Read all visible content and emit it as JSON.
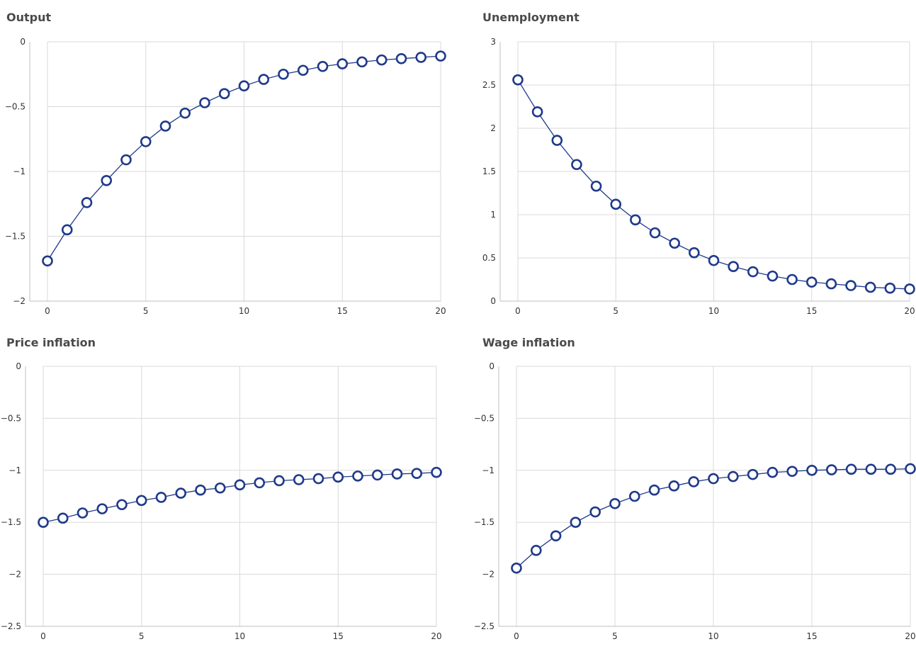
{
  "chart_data": [
    {
      "type": "line",
      "title": "Output",
      "xlabel": "",
      "ylabel": "",
      "xlim": [
        0,
        20
      ],
      "ylim": [
        -2,
        0
      ],
      "xticks": [
        0,
        5,
        10,
        15,
        20
      ],
      "yticks": [
        0,
        -0.5,
        -1,
        -1.5,
        -2
      ],
      "ytick_labels": [
        "0",
        "−0.5",
        "−1",
        "−1.5",
        "−2"
      ],
      "grid": true,
      "color": "#1f3a8a",
      "x": [
        0,
        1,
        2,
        3,
        4,
        5,
        6,
        7,
        8,
        9,
        10,
        11,
        12,
        13,
        14,
        15,
        16,
        17,
        18,
        19,
        20
      ],
      "series": [
        {
          "values": [
            -1.69,
            -1.45,
            -1.24,
            -1.07,
            -0.91,
            -0.77,
            -0.65,
            -0.55,
            -0.47,
            -0.4,
            -0.34,
            -0.29,
            -0.25,
            -0.22,
            -0.19,
            -0.17,
            -0.155,
            -0.14,
            -0.13,
            -0.12,
            -0.11
          ]
        }
      ]
    },
    {
      "type": "line",
      "title": "Unemployment",
      "xlabel": "",
      "ylabel": "",
      "xlim": [
        0,
        20
      ],
      "ylim": [
        0,
        3
      ],
      "xticks": [
        0,
        5,
        10,
        15,
        20
      ],
      "yticks": [
        3,
        2.5,
        2,
        1.5,
        1,
        0.5,
        0
      ],
      "ytick_labels": [
        "3",
        "2.5",
        "2",
        "1.5",
        "1",
        "0.5",
        "0"
      ],
      "grid": true,
      "color": "#1f3a8a",
      "x": [
        0,
        1,
        2,
        3,
        4,
        5,
        6,
        7,
        8,
        9,
        10,
        11,
        12,
        13,
        14,
        15,
        16,
        17,
        18,
        19,
        20
      ],
      "series": [
        {
          "values": [
            2.56,
            2.19,
            1.86,
            1.58,
            1.33,
            1.12,
            0.94,
            0.79,
            0.67,
            0.56,
            0.47,
            0.4,
            0.34,
            0.29,
            0.25,
            0.22,
            0.2,
            0.18,
            0.16,
            0.15,
            0.14
          ]
        }
      ]
    },
    {
      "type": "line",
      "title": "Price inflation",
      "xlabel": "",
      "ylabel": "",
      "xlim": [
        0,
        20
      ],
      "ylim": [
        -2.5,
        0
      ],
      "xticks": [
        0,
        5,
        10,
        15,
        20
      ],
      "yticks": [
        0,
        -0.5,
        -1,
        -1.5,
        -2,
        -2.5
      ],
      "ytick_labels": [
        "0",
        "−0.5",
        "−1",
        "−1.5",
        "−2",
        "−2.5"
      ],
      "grid": true,
      "color": "#1f3a8a",
      "x": [
        0,
        1,
        2,
        3,
        4,
        5,
        6,
        7,
        8,
        9,
        10,
        11,
        12,
        13,
        14,
        15,
        16,
        17,
        18,
        19,
        20
      ],
      "series": [
        {
          "values": [
            -1.5,
            -1.46,
            -1.41,
            -1.37,
            -1.33,
            -1.29,
            -1.26,
            -1.22,
            -1.19,
            -1.17,
            -1.14,
            -1.12,
            -1.1,
            -1.09,
            -1.08,
            -1.065,
            -1.055,
            -1.045,
            -1.035,
            -1.03,
            -1.02
          ]
        }
      ]
    },
    {
      "type": "line",
      "title": "Wage inflation",
      "xlabel": "",
      "ylabel": "",
      "xlim": [
        0,
        20
      ],
      "ylim": [
        -2.5,
        0
      ],
      "xticks": [
        0,
        5,
        10,
        15,
        20
      ],
      "yticks": [
        0,
        -0.5,
        -1,
        -1.5,
        -2,
        -2.5
      ],
      "ytick_labels": [
        "0",
        "−0.5",
        "−1",
        "−1.5",
        "−2",
        "−2.5"
      ],
      "grid": true,
      "color": "#1f3a8a",
      "x": [
        0,
        1,
        2,
        3,
        4,
        5,
        6,
        7,
        8,
        9,
        10,
        11,
        12,
        13,
        14,
        15,
        16,
        17,
        18,
        19,
        20
      ],
      "series": [
        {
          "values": [
            -1.94,
            -1.77,
            -1.63,
            -1.5,
            -1.4,
            -1.32,
            -1.25,
            -1.19,
            -1.15,
            -1.11,
            -1.08,
            -1.06,
            -1.04,
            -1.02,
            -1.01,
            -1.0,
            -0.995,
            -0.99,
            -0.99,
            -0.99,
            -0.985
          ]
        }
      ]
    }
  ]
}
